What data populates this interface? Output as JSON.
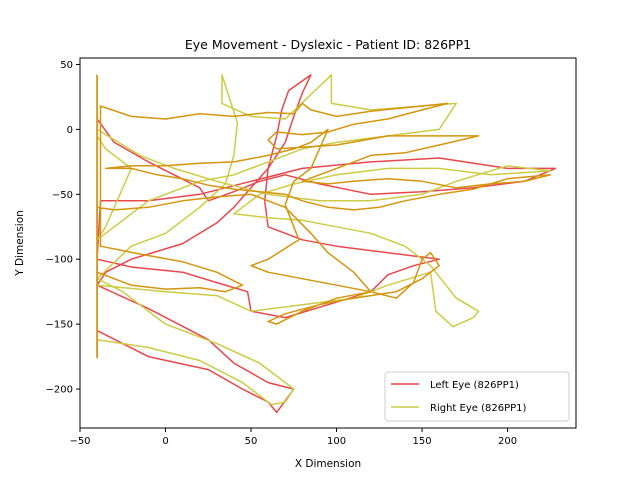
{
  "chart_data": {
    "type": "line",
    "title": "Eye Movement - Dyslexic - Patient ID: 826PP1",
    "xlabel": "X Dimension",
    "ylabel": "Y Dimension",
    "xlim": [
      -50,
      240
    ],
    "ylim": [
      -230,
      55
    ],
    "xticks": [
      -50,
      0,
      50,
      100,
      150,
      200
    ],
    "yticks": [
      50,
      0,
      -50,
      -100,
      -150,
      -200
    ],
    "grid": false,
    "legend_position": "lower-right",
    "series": [
      {
        "name": "Left Eye (826PP1)",
        "color": "#e8474d",
        "points": [
          [
            -40,
            42
          ],
          [
            -40,
            30
          ],
          [
            -40,
            5
          ],
          [
            -40,
            -30
          ],
          [
            -40,
            -70
          ],
          [
            -40,
            -120
          ],
          [
            -40,
            -175
          ],
          [
            -40,
            -155
          ],
          [
            -10,
            -175
          ],
          [
            25,
            -185
          ],
          [
            45,
            -200
          ],
          [
            60,
            -210
          ],
          [
            65,
            -218
          ],
          [
            75,
            -200
          ],
          [
            60,
            -195
          ],
          [
            40,
            -180
          ],
          [
            25,
            -162
          ],
          [
            -10,
            -138
          ],
          [
            -40,
            -120
          ],
          [
            -35,
            -110
          ],
          [
            -20,
            -100
          ],
          [
            10,
            -88
          ],
          [
            30,
            -72
          ],
          [
            40,
            -60
          ],
          [
            50,
            -45
          ],
          [
            60,
            -30
          ],
          [
            70,
            -10
          ],
          [
            75,
            10
          ],
          [
            80,
            28
          ],
          [
            85,
            42
          ],
          [
            72,
            30
          ],
          [
            68,
            15
          ],
          [
            65,
            -5
          ],
          [
            60,
            -30
          ],
          [
            58,
            -55
          ],
          [
            60,
            -75
          ],
          [
            80,
            -85
          ],
          [
            100,
            -90
          ],
          [
            130,
            -95
          ],
          [
            160,
            -100
          ],
          [
            145,
            -105
          ],
          [
            130,
            -112
          ],
          [
            120,
            -125
          ],
          [
            95,
            -135
          ],
          [
            70,
            -145
          ],
          [
            50,
            -140
          ],
          [
            48,
            -125
          ],
          [
            30,
            -118
          ],
          [
            10,
            -110
          ],
          [
            -20,
            -106
          ],
          [
            -40,
            -100
          ],
          [
            -38,
            -55
          ],
          [
            -10,
            -55
          ],
          [
            20,
            -50
          ],
          [
            50,
            -40
          ],
          [
            80,
            -30
          ],
          [
            120,
            -25
          ],
          [
            160,
            -22
          ],
          [
            200,
            -30
          ],
          [
            228,
            -30
          ],
          [
            210,
            -40
          ],
          [
            180,
            -45
          ],
          [
            150,
            -48
          ],
          [
            120,
            -50
          ],
          [
            90,
            -42
          ],
          [
            70,
            -35
          ],
          [
            55,
            -40
          ],
          [
            40,
            -48
          ],
          [
            25,
            -55
          ],
          [
            20,
            -45
          ],
          [
            5,
            -35
          ],
          [
            -10,
            -25
          ],
          [
            -30,
            -10
          ],
          [
            -40,
            8
          ]
        ]
      },
      {
        "name": "Right Eye (826PP1)",
        "color": "#cccc44",
        "points": [
          [
            -40,
            42
          ],
          [
            -40,
            10
          ],
          [
            -40,
            -40
          ],
          [
            -40,
            -90
          ],
          [
            -40,
            -130
          ],
          [
            -40,
            -170
          ],
          [
            -40,
            -162
          ],
          [
            -10,
            -168
          ],
          [
            20,
            -178
          ],
          [
            45,
            -195
          ],
          [
            62,
            -212
          ],
          [
            70,
            -210
          ],
          [
            75,
            -200
          ],
          [
            55,
            -180
          ],
          [
            30,
            -165
          ],
          [
            0,
            -150
          ],
          [
            -25,
            -125
          ],
          [
            -40,
            -115
          ],
          [
            -20,
            -90
          ],
          [
            0,
            -80
          ],
          [
            20,
            -60
          ],
          [
            35,
            -42
          ],
          [
            40,
            -20
          ],
          [
            42,
            5
          ],
          [
            33,
            42
          ],
          [
            33,
            20
          ],
          [
            50,
            10
          ],
          [
            70,
            8
          ],
          [
            97,
            42
          ],
          [
            97,
            20
          ],
          [
            120,
            15
          ],
          [
            170,
            20
          ],
          [
            160,
            0
          ],
          [
            130,
            -5
          ],
          [
            100,
            -10
          ],
          [
            80,
            -15
          ],
          [
            60,
            -25
          ],
          [
            40,
            -35
          ],
          [
            20,
            -40
          ],
          [
            -10,
            -55
          ],
          [
            -25,
            -70
          ],
          [
            -40,
            -85
          ],
          [
            -35,
            -75
          ],
          [
            -30,
            -60
          ],
          [
            -25,
            -45
          ],
          [
            -20,
            -30
          ],
          [
            -35,
            -15
          ],
          [
            -40,
            -5
          ],
          [
            -40,
            -120
          ],
          [
            0,
            -125
          ],
          [
            30,
            -128
          ],
          [
            50,
            -140
          ],
          [
            80,
            -135
          ],
          [
            110,
            -130
          ],
          [
            130,
            -120
          ],
          [
            155,
            -110
          ],
          [
            158,
            -140
          ],
          [
            168,
            -152
          ],
          [
            180,
            -145
          ],
          [
            183,
            -140
          ],
          [
            170,
            -130
          ],
          [
            155,
            -105
          ],
          [
            140,
            -90
          ],
          [
            120,
            -80
          ],
          [
            100,
            -75
          ],
          [
            80,
            -70
          ],
          [
            60,
            -68
          ],
          [
            40,
            -65
          ],
          [
            55,
            -50
          ],
          [
            75,
            -42
          ],
          [
            100,
            -35
          ],
          [
            130,
            -30
          ],
          [
            160,
            -30
          ],
          [
            190,
            -35
          ],
          [
            225,
            -32
          ],
          [
            200,
            -28
          ],
          [
            170,
            -40
          ],
          [
            150,
            -50
          ],
          [
            120,
            -55
          ],
          [
            90,
            -55
          ],
          [
            60,
            -50
          ],
          [
            30,
            -40
          ],
          [
            5,
            -30
          ],
          [
            -15,
            -20
          ],
          [
            -40,
            0
          ]
        ]
      },
      {
        "name": "",
        "color": "#d4950f",
        "points": [
          [
            -40,
            42
          ],
          [
            -40,
            20
          ],
          [
            -40,
            -10
          ],
          [
            -40,
            -40
          ],
          [
            -40,
            -60
          ],
          [
            -40,
            -90
          ],
          [
            -40,
            -125
          ],
          [
            -40,
            -150
          ],
          [
            -40,
            -176
          ],
          [
            -40,
            -110
          ],
          [
            -20,
            -120
          ],
          [
            0,
            -123
          ],
          [
            20,
            -122
          ],
          [
            35,
            -125
          ],
          [
            45,
            -120
          ],
          [
            30,
            -110
          ],
          [
            10,
            -102
          ],
          [
            -15,
            -96
          ],
          [
            -38,
            -90
          ],
          [
            -38,
            18
          ],
          [
            -20,
            10
          ],
          [
            0,
            8
          ],
          [
            20,
            12
          ],
          [
            40,
            10
          ],
          [
            60,
            13
          ],
          [
            75,
            12
          ],
          [
            80,
            20
          ],
          [
            85,
            15
          ],
          [
            100,
            10
          ],
          [
            120,
            14
          ],
          [
            150,
            18
          ],
          [
            165,
            20
          ],
          [
            150,
            15
          ],
          [
            130,
            8
          ],
          [
            110,
            4
          ],
          [
            95,
            -2
          ],
          [
            80,
            -4
          ],
          [
            65,
            -2
          ],
          [
            60,
            -8
          ],
          [
            65,
            -15
          ],
          [
            100,
            -12
          ],
          [
            130,
            -5
          ],
          [
            160,
            -5
          ],
          [
            183,
            -5
          ],
          [
            160,
            -12
          ],
          [
            140,
            -18
          ],
          [
            120,
            -20
          ],
          [
            110,
            -25
          ],
          [
            100,
            -30
          ],
          [
            90,
            -35
          ],
          [
            80,
            -40
          ],
          [
            95,
            -42
          ],
          [
            110,
            -40
          ],
          [
            130,
            -38
          ],
          [
            150,
            -40
          ],
          [
            170,
            -45
          ],
          [
            190,
            -42
          ],
          [
            210,
            -40
          ],
          [
            225,
            -35
          ],
          [
            200,
            -38
          ],
          [
            180,
            -46
          ],
          [
            160,
            -50
          ],
          [
            140,
            -55
          ],
          [
            125,
            -60
          ],
          [
            110,
            -62
          ],
          [
            95,
            -60
          ],
          [
            80,
            -55
          ],
          [
            70,
            -50
          ],
          [
            55,
            -48
          ],
          [
            40,
            -46
          ],
          [
            25,
            -43
          ],
          [
            10,
            -38
          ],
          [
            -5,
            -35
          ],
          [
            -20,
            -30
          ],
          [
            -35,
            -30
          ],
          [
            -20,
            -28
          ],
          [
            0,
            -28
          ],
          [
            20,
            -26
          ],
          [
            40,
            -25
          ],
          [
            60,
            -20
          ],
          [
            75,
            -15
          ],
          [
            85,
            -10
          ],
          [
            90,
            -5
          ],
          [
            95,
            0
          ],
          [
            85,
            -30
          ],
          [
            75,
            -40
          ],
          [
            70,
            -58
          ],
          [
            75,
            -75
          ],
          [
            78,
            -85
          ],
          [
            60,
            -100
          ],
          [
            50,
            -105
          ],
          [
            60,
            -110
          ],
          [
            80,
            -115
          ],
          [
            100,
            -120
          ],
          [
            120,
            -125
          ],
          [
            135,
            -130
          ],
          [
            145,
            -118
          ],
          [
            150,
            -100
          ],
          [
            155,
            -95
          ],
          [
            160,
            -105
          ],
          [
            150,
            -115
          ],
          [
            135,
            -125
          ],
          [
            110,
            -130
          ],
          [
            90,
            -135
          ],
          [
            70,
            -142
          ],
          [
            60,
            -148
          ],
          [
            65,
            -150
          ],
          [
            80,
            -140
          ],
          [
            100,
            -130
          ],
          [
            120,
            -125
          ],
          [
            110,
            -110
          ],
          [
            95,
            -95
          ],
          [
            85,
            -80
          ],
          [
            70,
            -60
          ],
          [
            50,
            -50
          ],
          [
            30,
            -52
          ],
          [
            10,
            -55
          ],
          [
            -10,
            -60
          ],
          [
            -30,
            -62
          ],
          [
            -40,
            -60
          ]
        ]
      }
    ]
  }
}
